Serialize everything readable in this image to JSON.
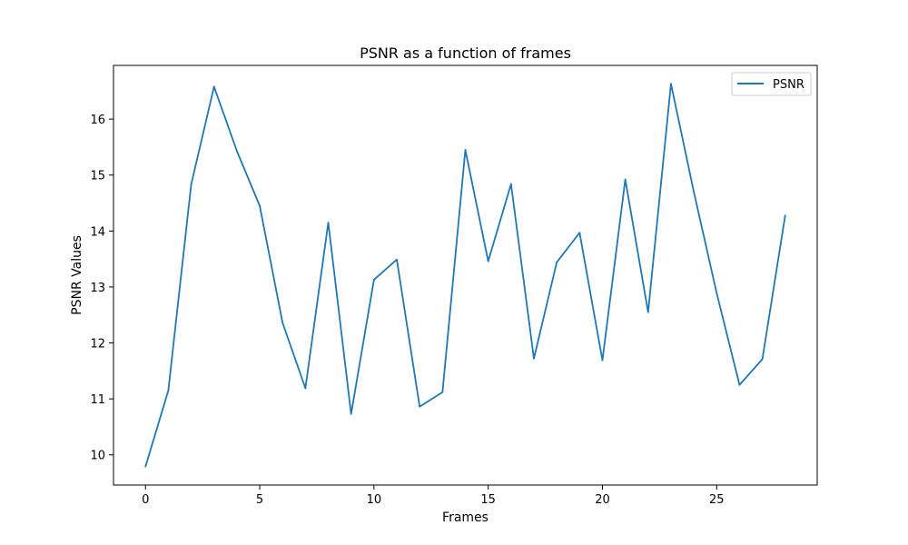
{
  "chart_data": {
    "type": "line",
    "title": "PSNR as a function of frames",
    "xlabel": "Frames",
    "ylabel": "PSNR Values",
    "xlim": [
      -1.4,
      29.4
    ],
    "ylim": [
      9.46,
      16.96
    ],
    "xticks": [
      0,
      5,
      10,
      15,
      20,
      25
    ],
    "yticks": [
      10,
      11,
      12,
      13,
      14,
      15,
      16
    ],
    "grid": false,
    "legend_position": "top-right",
    "x": [
      0,
      1,
      2,
      3,
      4,
      5,
      6,
      7,
      8,
      9,
      10,
      11,
      12,
      13,
      14,
      15,
      16,
      17,
      18,
      19,
      20,
      21,
      22,
      23,
      24,
      25,
      26,
      27,
      28
    ],
    "series": [
      {
        "name": "PSNR",
        "color": "#1f77b4",
        "values": [
          9.79,
          11.15,
          14.83,
          16.58,
          15.43,
          14.45,
          12.36,
          11.19,
          14.15,
          10.73,
          13.13,
          13.49,
          10.86,
          11.12,
          15.45,
          13.46,
          14.84,
          11.72,
          13.44,
          13.97,
          11.69,
          14.92,
          12.55,
          16.63,
          14.7,
          12.89,
          11.25,
          11.71,
          14.28
        ]
      }
    ]
  }
}
